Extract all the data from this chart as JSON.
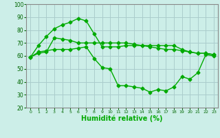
{
  "title": "",
  "xlabel": "Humidité relative (%)",
  "ylabel": "",
  "background_color": "#cceee8",
  "grid_color": "#aacccc",
  "line_color": "#00aa00",
  "marker": "D",
  "markersize": 2.5,
  "linewidth": 1.0,
  "xlim": [
    -0.5,
    23.5
  ],
  "ylim": [
    20,
    100
  ],
  "xticks": [
    0,
    1,
    2,
    3,
    4,
    5,
    6,
    7,
    8,
    9,
    10,
    11,
    12,
    13,
    14,
    15,
    16,
    17,
    18,
    19,
    20,
    21,
    22,
    23
  ],
  "yticks": [
    20,
    30,
    40,
    50,
    60,
    70,
    80,
    90,
    100
  ],
  "series": [
    [
      59,
      63,
      64,
      65,
      65,
      65,
      66,
      67,
      58,
      51,
      50,
      37,
      37,
      36,
      35,
      32,
      34,
      33,
      36,
      44,
      42,
      47,
      61,
      60
    ],
    [
      59,
      68,
      75,
      81,
      84,
      86,
      89,
      87,
      77,
      67,
      67,
      67,
      68,
      68,
      68,
      68,
      68,
      68,
      68,
      65,
      63,
      62,
      62,
      61
    ],
    [
      59,
      62,
      63,
      74,
      73,
      72,
      70,
      70,
      70,
      70,
      70,
      70,
      70,
      69,
      68,
      67,
      66,
      65,
      65,
      64,
      63,
      62,
      62,
      61
    ]
  ],
  "tick_color": "#006600",
  "xlabel_fontsize": 7,
  "xlabel_bold": true,
  "xtick_fontsize": 4.5,
  "ytick_fontsize": 5.5
}
